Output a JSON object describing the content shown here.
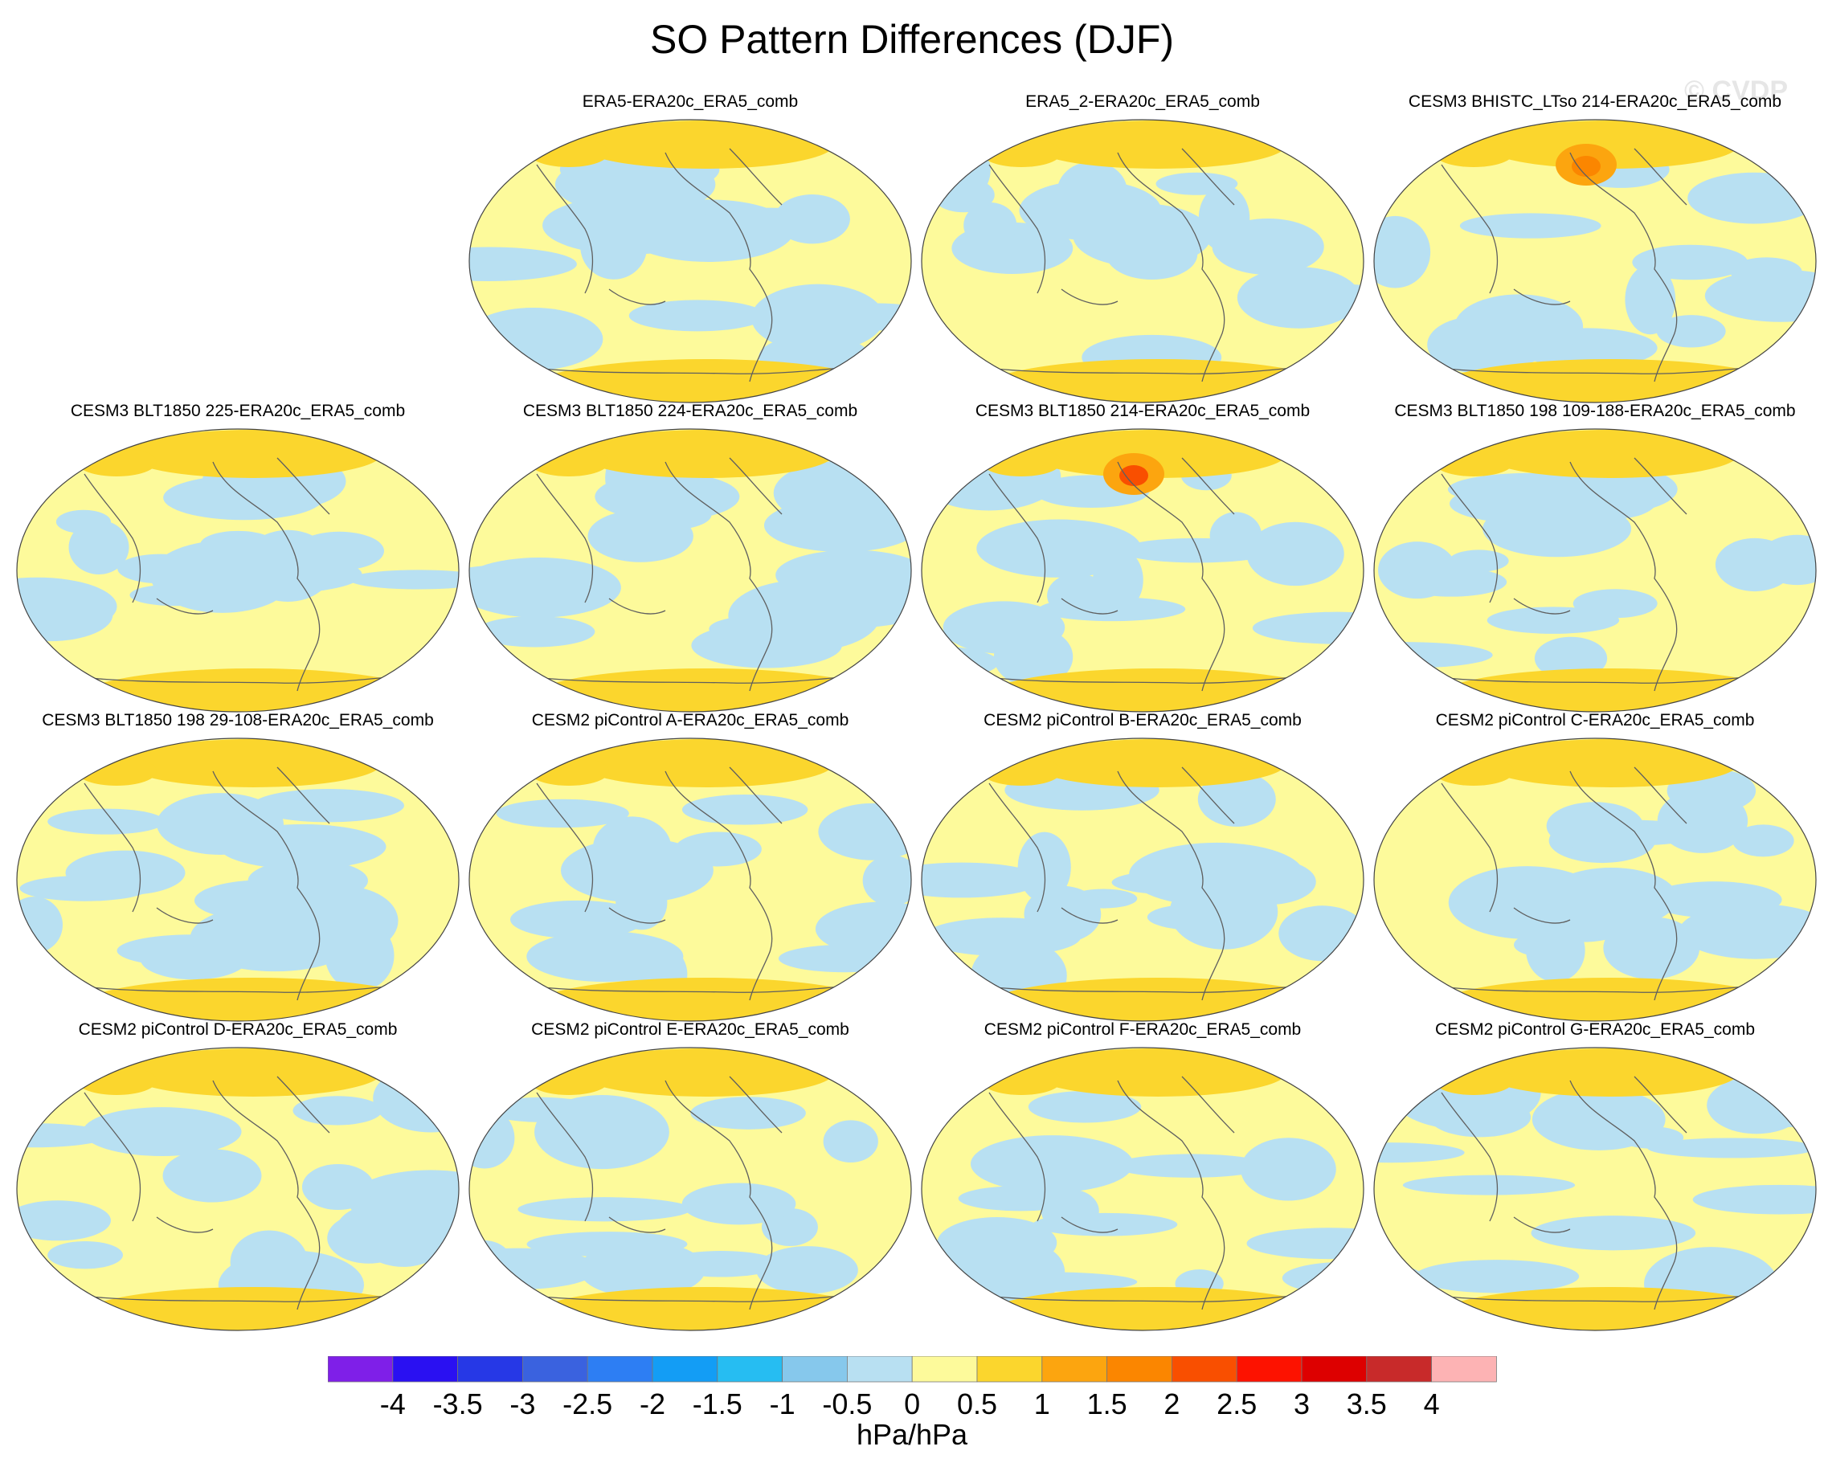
{
  "title": "SO Pattern Differences (DJF)",
  "watermark": "© CVDP",
  "panels": [
    "ERA5-ERA20c_ERA5_comb",
    "ERA5_2-ERA20c_ERA5_comb",
    "CESM3 BHISTC_LTso 214-ERA20c_ERA5_comb",
    "CESM3 BLT1850 225-ERA20c_ERA5_comb",
    "CESM3 BLT1850 224-ERA20c_ERA5_comb",
    "CESM3 BLT1850 214-ERA20c_ERA5_comb",
    "CESM3 BLT1850 198 109-188-ERA20c_ERA5_comb",
    "CESM3 BLT1850 198 29-108-ERA20c_ERA5_comb",
    "CESM2 piControl A-ERA20c_ERA5_comb",
    "CESM2 piControl B-ERA20c_ERA5_comb",
    "CESM2 piControl C-ERA20c_ERA5_comb",
    "CESM2 piControl D-ERA20c_ERA5_comb",
    "CESM2 piControl E-ERA20c_ERA5_comb",
    "CESM2 piControl F-ERA20c_ERA5_comb",
    "CESM2 piControl G-ERA20c_ERA5_comb"
  ],
  "colorbar": {
    "labels": [
      "-4",
      "-3.5",
      "-3",
      "-2.5",
      "-2",
      "-1.5",
      "-1",
      "-0.5",
      "0",
      "0.5",
      "1",
      "1.5",
      "2",
      "2.5",
      "3",
      "3.5",
      "4"
    ],
    "colors": [
      "#7f1fe8",
      "#2a10f2",
      "#2638e6",
      "#3a62df",
      "#2d7ef3",
      "#139df5",
      "#26bdf2",
      "#86c8ec",
      "#b8e0f2",
      "#fdfa9b",
      "#fbd62d",
      "#fca50f",
      "#fb8600",
      "#f94f00",
      "#fd1200",
      "#dd0000",
      "#c82a2a",
      "#fdb3b4"
    ],
    "unit": "hPa/hPa"
  },
  "colors": {
    "map_base": "#fdfa9b",
    "negative": "#b8e0f2",
    "positive": "#fbd62d",
    "coast": "#5f5f5f"
  }
}
